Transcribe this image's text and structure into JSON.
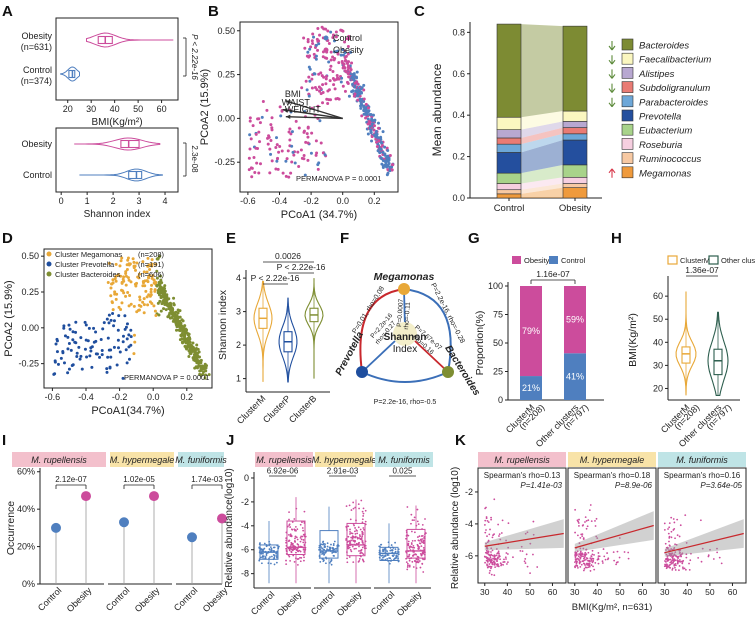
{
  "figure": {
    "panel_labels": [
      "A",
      "B",
      "C",
      "D",
      "E",
      "F",
      "G",
      "H",
      "I",
      "J",
      "K"
    ]
  },
  "colors": {
    "obesity": "#cc4c9c",
    "control": "#4f7fbf",
    "megamonas": "#e8a838",
    "prevotella": "#1f4e9e",
    "bacteroides": "#7e8e32",
    "green_bg": "#dfe9c8",
    "pink_bg": "#f3c0cc",
    "blue_bg": "#bfe4e6"
  },
  "chart_data": [
    {
      "panel": "A",
      "type": "violin",
      "top": {
        "xlabel": "BMI(Kg/m²)",
        "xticks": [
          "20",
          "30",
          "40",
          "50",
          "60"
        ],
        "xlim": [
          15,
          67
        ],
        "groups": [
          {
            "name": "Obesity",
            "n": "(n=631)",
            "median": 36,
            "q1": 33,
            "q3": 39,
            "min": 28,
            "max": 65
          },
          {
            "name": "Control",
            "n": "(n=374)",
            "median": 22,
            "q1": 20.5,
            "q3": 23,
            "min": 17,
            "max": 25
          }
        ],
        "pvalue": "P < 2.22e-16"
      },
      "bottom": {
        "xlabel": "Shannon index",
        "xticks": [
          "0",
          "1",
          "2",
          "3",
          "4"
        ],
        "xlim": [
          -0.2,
          4.5
        ],
        "groups": [
          {
            "name": "Obesity",
            "median": 2.6,
            "q1": 2.3,
            "q3": 3.0,
            "min": 0.5,
            "max": 3.8
          },
          {
            "name": "Control",
            "median": 2.9,
            "q1": 2.6,
            "q3": 3.1,
            "min": 0.7,
            "max": 3.9
          }
        ],
        "pvalue": "2.3e-08"
      }
    },
    {
      "panel": "B",
      "type": "scatter",
      "xlabel": "PCoA1 (34.7%)",
      "ylabel": "PCoA2 (15.9%)",
      "xticks": [
        "-0.6",
        "-0.4",
        "-0.2",
        "0.0",
        "0.2"
      ],
      "yticks": [
        "0.50",
        "0.25",
        "0.00",
        "-0.25"
      ],
      "xlim": [
        -0.65,
        0.35
      ],
      "ylim": [
        -0.42,
        0.55
      ],
      "legend": [
        "Control",
        "Obesity"
      ],
      "arrows": [
        {
          "label": "BMI",
          "x": -0.36,
          "y": 0.1
        },
        {
          "label": "WAIST",
          "x": -0.38,
          "y": 0.05
        },
        {
          "label": "WEIGHT",
          "x": -0.36,
          "y": 0.01
        }
      ],
      "arrow_origin": [
        0.0,
        0.0
      ],
      "annotation": "PERMANOVA P = 0.0001"
    },
    {
      "panel": "C",
      "type": "stacked-bar",
      "ylabel": "Mean abundance",
      "yticks": [
        "0.0",
        "0.2",
        "0.4",
        "0.6",
        "0.8"
      ],
      "ylim": [
        0,
        0.85
      ],
      "categories": [
        "Control",
        "Obesity"
      ],
      "series": [
        {
          "name": "Megamonas",
          "color": "#ef9a3c",
          "values": [
            0.02,
            0.05
          ],
          "arrow": "up"
        },
        {
          "name": "Ruminococcus",
          "color": "#f7c9a3",
          "values": [
            0.02,
            0.02
          ],
          "arrow": ""
        },
        {
          "name": "Roseburia",
          "color": "#f6cfe0",
          "values": [
            0.03,
            0.03
          ],
          "arrow": ""
        },
        {
          "name": "Eubacterium",
          "color": "#a8d38a",
          "values": [
            0.05,
            0.06
          ],
          "arrow": ""
        },
        {
          "name": "Prevotella",
          "color": "#244f9e",
          "values": [
            0.1,
            0.12
          ],
          "arrow": ""
        },
        {
          "name": "Parabacteroides",
          "color": "#6da7d8",
          "values": [
            0.04,
            0.03
          ],
          "arrow": "down"
        },
        {
          "name": "Subdoligranulum",
          "color": "#e97b74",
          "values": [
            0.03,
            0.03
          ],
          "arrow": "down"
        },
        {
          "name": "Alistipes",
          "color": "#b8a8d1",
          "values": [
            0.04,
            0.03
          ],
          "arrow": "down"
        },
        {
          "name": "Faecalibacterium",
          "color": "#fbf7c0",
          "values": [
            0.06,
            0.05
          ],
          "arrow": "down"
        },
        {
          "name": "Bacteroides",
          "color": "#7d8b33",
          "values": [
            0.45,
            0.41
          ],
          "arrow": "down"
        }
      ]
    },
    {
      "panel": "D",
      "type": "scatter",
      "xlabel": "PCoA1(34.7%)",
      "ylabel": "PCoA2 (15.9%)",
      "xticks": [
        "-0.6",
        "-0.4",
        "-0.2",
        "0.0",
        "0.2"
      ],
      "yticks": [
        "0.50",
        "0.25",
        "0.00",
        "-0.25"
      ],
      "xlim": [
        -0.65,
        0.35
      ],
      "ylim": [
        -0.42,
        0.55
      ],
      "legend": [
        {
          "name": "Cluster Megamonas",
          "n": "(n=208)"
        },
        {
          "name": "Cluster Prevotella",
          "n": "(n=191)"
        },
        {
          "name": "Cluster Bacteroides",
          "n": "(n=606)"
        }
      ],
      "annotation": "PERMANOVA P = 0.0001"
    },
    {
      "panel": "E",
      "type": "violin",
      "ylabel": "Shannon index",
      "yticks": [
        "1",
        "2",
        "3",
        "4"
      ],
      "ylim": [
        0.6,
        4.6
      ],
      "categories": [
        "ClusterM",
        "ClusterP",
        "ClusterB"
      ],
      "groups": [
        {
          "median": 2.8,
          "q1": 2.5,
          "q3": 3.1,
          "min": 0.9,
          "max": 3.9
        },
        {
          "median": 2.1,
          "q1": 1.8,
          "q3": 2.4,
          "min": 0.9,
          "max": 3.4
        },
        {
          "median": 2.9,
          "q1": 2.7,
          "q3": 3.1,
          "min": 1.0,
          "max": 4.0
        }
      ],
      "pvalues": [
        "0.0026",
        "P < 2.22e-16",
        "P < 2.22e-16"
      ]
    },
    {
      "panel": "F",
      "type": "network",
      "center": [
        "Shannon",
        "Index"
      ],
      "nodes": [
        "Megamonas",
        "Prevotella",
        "Bacteroides"
      ],
      "edges": [
        {
          "label": "P=0.01, rho=0.08"
        },
        {
          "label": "P=2.2e-16, rho=-0.28"
        },
        {
          "label": "P=2.2e-16, rho=-0.5"
        },
        {
          "label": "P=2.2e-16"
        },
        {
          "label": "rho=-0.27"
        },
        {
          "label": "P=0.0007"
        },
        {
          "label": "rho=-0.11"
        },
        {
          "label": "P=7.67e-07"
        },
        {
          "label": "rho=0.16"
        }
      ]
    },
    {
      "panel": "G",
      "type": "stacked-bar",
      "ylabel": "Proportion(%)",
      "yticks": [
        "0",
        "25",
        "50",
        "75",
        "100"
      ],
      "legend": [
        "Obesity",
        "Control"
      ],
      "categories": [
        "ClusterM",
        "Other clusters"
      ],
      "cat_n": [
        "(n=208)",
        "(n=797)"
      ],
      "obesity": [
        79,
        59
      ],
      "control": [
        21,
        41
      ],
      "labels": {
        "obesity": [
          "79%",
          "59%"
        ],
        "control": [
          "21%",
          "41%"
        ]
      },
      "pvalue": "1.16e-07"
    },
    {
      "panel": "H",
      "type": "violin",
      "ylabel": "BMI(Kg/m²)",
      "yticks": [
        "20",
        "30",
        "40",
        "50",
        "60"
      ],
      "ylim": [
        15,
        67
      ],
      "legend": [
        "ClusterM",
        "Other  clusters"
      ],
      "categories": [
        "ClusterM",
        "Other clusters"
      ],
      "cat_n": [
        "(n=208)",
        "(n=797)"
      ],
      "groups": [
        {
          "median": 35,
          "q1": 31,
          "q3": 38,
          "min": 17,
          "max": 62
        },
        {
          "median": 32,
          "q1": 26,
          "q3": 37,
          "min": 17,
          "max": 53
        }
      ],
      "pvalue": "1.36e-07"
    },
    {
      "panel": "I",
      "type": "lollipop",
      "ylabel": "Occurrence",
      "yticks": [
        "0%",
        "20%",
        "40%",
        "60%"
      ],
      "ylim": [
        0,
        62
      ],
      "facets": [
        {
          "title": "M. rupellensis",
          "control": 30,
          "obesity": 47,
          "pvalue": "2.12e-07",
          "bg": "#f3c0cc"
        },
        {
          "title": "M. hypermegale",
          "control": 33,
          "obesity": 47,
          "pvalue": "1.02e-05",
          "bg": "#f8e3a8"
        },
        {
          "title": "M. funiformis",
          "control": 25,
          "obesity": 35,
          "pvalue": "1.74e-03",
          "bg": "#bfe4e6"
        }
      ],
      "categories": [
        "Control",
        "Obesity"
      ]
    },
    {
      "panel": "J",
      "type": "box-jitter",
      "ylabel": "Relative abundance(log10)",
      "yticks": [
        "0",
        "-2",
        "-4",
        "-6",
        "-8"
      ],
      "ylim": [
        -9.2,
        0.5
      ],
      "facets": [
        {
          "title": "M. rupellensis",
          "pvalue": "6.92e-06",
          "control": {
            "median": -6.2,
            "q1": -6.8,
            "q3": -5.6
          },
          "obesity": {
            "median": -5.8,
            "q1": -6.4,
            "q3": -3.6
          }
        },
        {
          "title": "M. hypermegale",
          "pvalue": "2.91e-03",
          "control": {
            "median": -6.1,
            "q1": -6.7,
            "q3": -4.4
          },
          "obesity": {
            "median": -5.6,
            "q1": -6.5,
            "q3": -3.8
          }
        },
        {
          "title": "M. funiformis",
          "pvalue": "0.025",
          "control": {
            "median": -6.3,
            "q1": -6.9,
            "q3": -5.8
          },
          "obesity": {
            "median": -6.1,
            "q1": -6.7,
            "q3": -4.3
          }
        }
      ],
      "categories": [
        "Control",
        "Obesity"
      ]
    },
    {
      "panel": "K",
      "type": "scatter-regression",
      "ylabel": "Relative abundance (log10)",
      "xlabel": "BMI(Kg/m², n=631)",
      "xticks": [
        "30",
        "40",
        "50",
        "60"
      ],
      "yticks": [
        "-2",
        "-4",
        "-6"
      ],
      "xlim": [
        27,
        66
      ],
      "ylim": [
        -7.7,
        -0.5
      ],
      "facets": [
        {
          "title": "M. rupellensis",
          "stat1": "Spearman's rho=0.13",
          "stat2": "P=1.41e-03",
          "y_at_30": -5.4,
          "y_at_65": -4.6
        },
        {
          "title": "M. hypermegale",
          "stat1": "Spearman's rho=0.18",
          "stat2": "P=8.9e-06",
          "y_at_30": -5.5,
          "y_at_65": -4.1
        },
        {
          "title": "M. funiformis",
          "stat1": "Spearman's rho=0.16",
          "stat2": "P=3.64e-05",
          "y_at_30": -5.8,
          "y_at_65": -4.6
        }
      ]
    }
  ]
}
